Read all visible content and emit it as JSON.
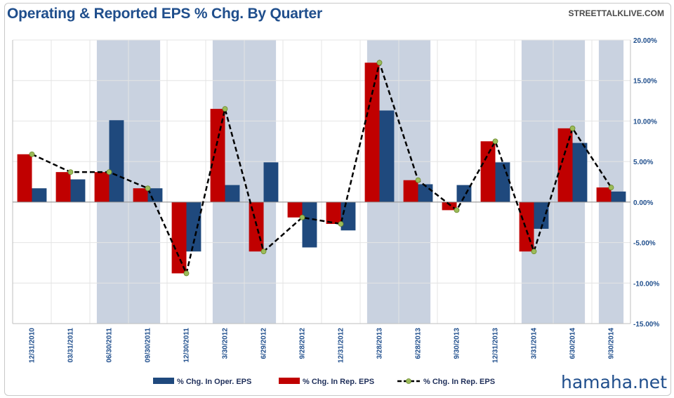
{
  "title": "Operating & Reported EPS % Chg. By Quarter",
  "source": "STREETTALKLIVE.COM",
  "watermark": "hamaha.net",
  "colors": {
    "oper": "#1f497d",
    "rep": "#c00000",
    "shade": "#c9d2e0",
    "line": "#000000",
    "marker": "#9bbb59"
  },
  "chart_data": {
    "type": "bar",
    "categories": [
      "12/31/2010",
      "03/31/2011",
      "06/30/2011",
      "09/30/2011",
      "12/30/2011",
      "3/30/2012",
      "6/29/2012",
      "9/28/2012",
      "12/31/2012",
      "3/28/2013",
      "6/28/2013",
      "9/30/2013",
      "12/31/2013",
      "3/31/2014",
      "6/30/2014",
      "9/30/2014"
    ],
    "series": [
      {
        "name": "% Chg. In Oper. EPS",
        "type": "bar",
        "values": [
          1.7,
          2.8,
          10.1,
          1.7,
          -6.1,
          2.1,
          4.9,
          -5.6,
          -3.5,
          11.3,
          2.2,
          2.1,
          4.9,
          -3.3,
          7.3,
          1.3
        ]
      },
      {
        "name": "% Chg. In Rep. EPS",
        "type": "bar",
        "values": [
          5.9,
          3.7,
          3.7,
          1.7,
          -8.8,
          11.5,
          -6.1,
          -1.9,
          -2.7,
          17.2,
          2.7,
          -1.0,
          7.5,
          -6.1,
          9.1,
          1.8
        ]
      },
      {
        "name": "% Chg. In Rep. EPS",
        "type": "line",
        "values": [
          5.9,
          3.7,
          3.7,
          1.7,
          -8.8,
          11.5,
          -6.1,
          -1.9,
          -2.7,
          17.2,
          2.7,
          -1.0,
          7.5,
          -6.1,
          9.1,
          1.8
        ]
      }
    ],
    "y_ticks": [
      "20.00%",
      "15.00%",
      "10.00%",
      "5.00%",
      "0.00%",
      "-5.00%",
      "-10.00%",
      "-15.00%"
    ],
    "ylim": [
      -15,
      20
    ],
    "recession_bands": [
      [
        2,
        3
      ],
      [
        5,
        6
      ],
      [
        9,
        10
      ],
      [
        13,
        14
      ],
      [
        15,
        15
      ]
    ],
    "legend_position": "bottom"
  }
}
